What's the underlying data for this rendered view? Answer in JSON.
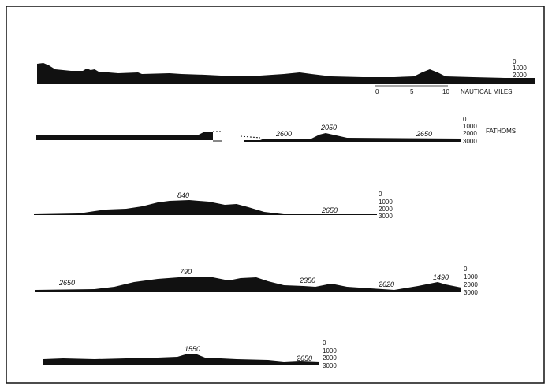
{
  "profiles": [
    {
      "id": "p1",
      "depth_labels": []
    },
    {
      "id": "p2",
      "depth_labels": [
        "2600",
        "2050",
        "2650"
      ]
    },
    {
      "id": "p3",
      "depth_labels": [
        "840",
        "2650"
      ]
    },
    {
      "id": "p4",
      "depth_labels": [
        "2650",
        "790",
        "2350",
        "2620",
        "1490"
      ]
    },
    {
      "id": "p5",
      "depth_labels": [
        "1550",
        "2650"
      ]
    }
  ],
  "depth_scale": {
    "ticks_short": [
      "0",
      "1000",
      "2000"
    ],
    "ticks": [
      "0",
      "1000",
      "2000",
      "3000"
    ],
    "unit": "FATHOMS"
  },
  "distance_scale": {
    "ticks": [
      "0",
      "5",
      "10"
    ],
    "unit": "NAUTICAL MILES"
  }
}
